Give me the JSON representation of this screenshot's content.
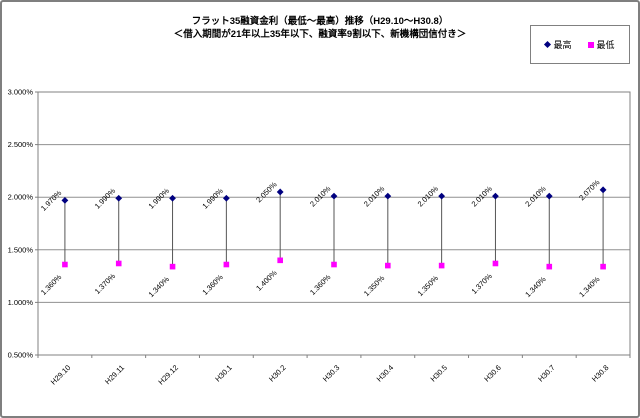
{
  "title": {
    "line1": "フラット35融資金利（最低～最高）推移（H29.10～H30.8）",
    "line2": "＜借入期間が21年以上35年以下、融資率9割以下、新機構団信付き＞"
  },
  "chart_data": {
    "type": "scatter",
    "subtype": "high-low-lines",
    "title": "フラット35融資金利（最低～最高）推移（H29.10～H30.8）",
    "subtitle": "＜借入期間が21年以上35年以下、融資率9割以下、新機構団信付き＞",
    "categories": [
      "H29.10",
      "H29.11",
      "H29.12",
      "H30.1",
      "H30.2",
      "H30.3",
      "H30.4",
      "H30.5",
      "H30.6",
      "H30.7",
      "H30.8"
    ],
    "series": [
      {
        "name": "最高",
        "marker": "diamond",
        "color": "#000080",
        "values": [
          1.97,
          1.99,
          1.99,
          1.99,
          2.05,
          2.01,
          2.01,
          2.01,
          2.01,
          2.01,
          2.07
        ],
        "labels": [
          "1.970%",
          "1.990%",
          "1.990%",
          "1.990%",
          "2.050%",
          "2.010%",
          "2.010%",
          "2.010%",
          "2.010%",
          "2.010%",
          "2.070%"
        ]
      },
      {
        "name": "最低",
        "marker": "square",
        "color": "#FF00FF",
        "values": [
          1.36,
          1.37,
          1.34,
          1.36,
          1.4,
          1.36,
          1.35,
          1.35,
          1.37,
          1.34,
          1.34
        ],
        "labels": [
          "1.360%",
          "1.370%",
          "1.340%",
          "1.360%",
          "1.400%",
          "1.360%",
          "1.350%",
          "1.350%",
          "1.370%",
          "1.340%",
          "1.340%"
        ]
      }
    ],
    "ylim": [
      0.5,
      3.0
    ],
    "ytick_step": 0.5,
    "ytick_labels": [
      "0.500%",
      "1.000%",
      "1.500%",
      "2.000%",
      "2.500%",
      "3.000%"
    ],
    "grid": true,
    "high_low_lines": true,
    "legend_position": "top-right",
    "colors": {
      "gridline": "#909090",
      "plot_border": "#808080",
      "high_low_line": "#555555",
      "text": "#000000"
    }
  }
}
